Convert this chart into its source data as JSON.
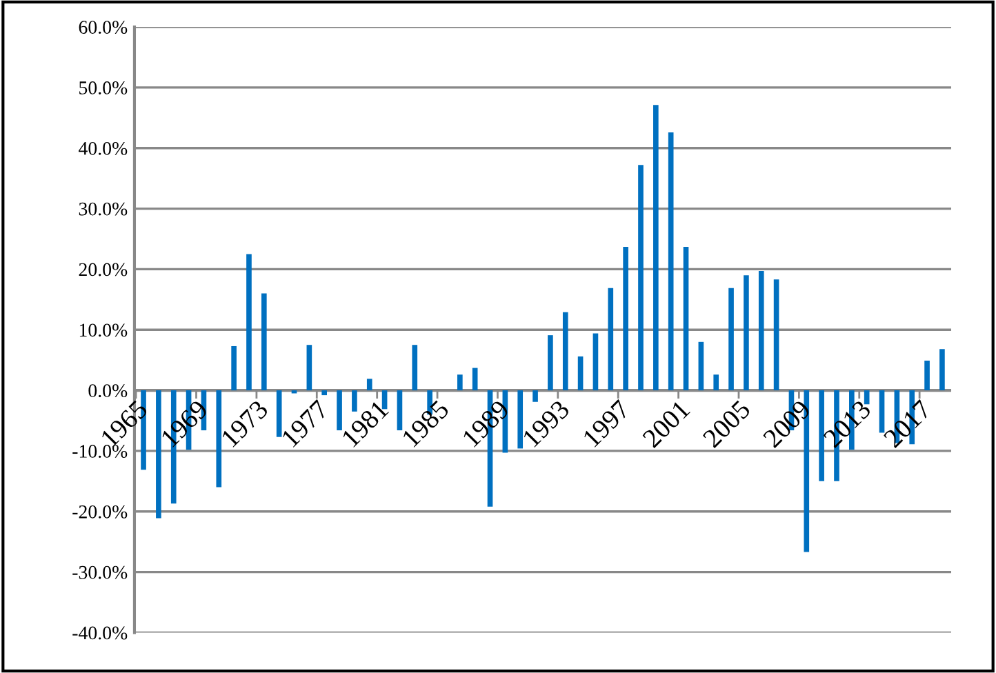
{
  "chart_data": {
    "type": "bar",
    "categories": [
      "1965",
      null,
      null,
      null,
      "1969",
      null,
      null,
      null,
      "1973",
      null,
      null,
      null,
      "1977",
      null,
      null,
      null,
      "1981",
      null,
      null,
      null,
      "1985",
      null,
      null,
      null,
      "1989",
      null,
      null,
      null,
      "1993",
      null,
      null,
      null,
      "1997",
      null,
      null,
      null,
      "2001",
      null,
      null,
      null,
      "2005",
      null,
      null,
      null,
      "2009",
      null,
      null,
      null,
      "2013",
      null,
      null,
      null,
      "2017",
      null
    ],
    "values": [
      -13.1,
      -21.1,
      -18.7,
      -9.8,
      -6.6,
      -16.0,
      7.3,
      22.5,
      16.0,
      -7.7,
      -0.5,
      7.5,
      -0.8,
      -6.6,
      -3.5,
      1.9,
      -3.1,
      -6.6,
      7.5,
      -4.0,
      0,
      2.6,
      3.7,
      -19.2,
      -10.3,
      -9.6,
      -1.9,
      9.1,
      12.9,
      5.6,
      9.4,
      16.9,
      23.7,
      37.2,
      47.1,
      42.6,
      23.7,
      8.0,
      2.6,
      16.9,
      19.0,
      19.7,
      18.3,
      -6.6,
      -26.7,
      -15.0,
      -15.0,
      -9.8,
      -2.3,
      -7.0,
      -8.7,
      -8.9,
      4.9,
      6.8
    ],
    "color": "#0070c0",
    "ylim": [
      -40,
      60
    ],
    "yticks": [
      {
        "value": -40,
        "label": "-40.0%"
      },
      {
        "value": -30,
        "label": "-30.0%"
      },
      {
        "value": -20,
        "label": "-20.0%"
      },
      {
        "value": -10,
        "label": "-10.0%"
      },
      {
        "value": 0,
        "label": "0.0%"
      },
      {
        "value": 10,
        "label": "10.0%"
      },
      {
        "value": 20,
        "label": "20.0%"
      },
      {
        "value": 30,
        "label": "30.0%"
      },
      {
        "value": 40,
        "label": "40.0%"
      },
      {
        "value": 50,
        "label": "50.0%"
      },
      {
        "value": 60,
        "label": "60.0%"
      }
    ],
    "grid": "y",
    "legend": false
  }
}
